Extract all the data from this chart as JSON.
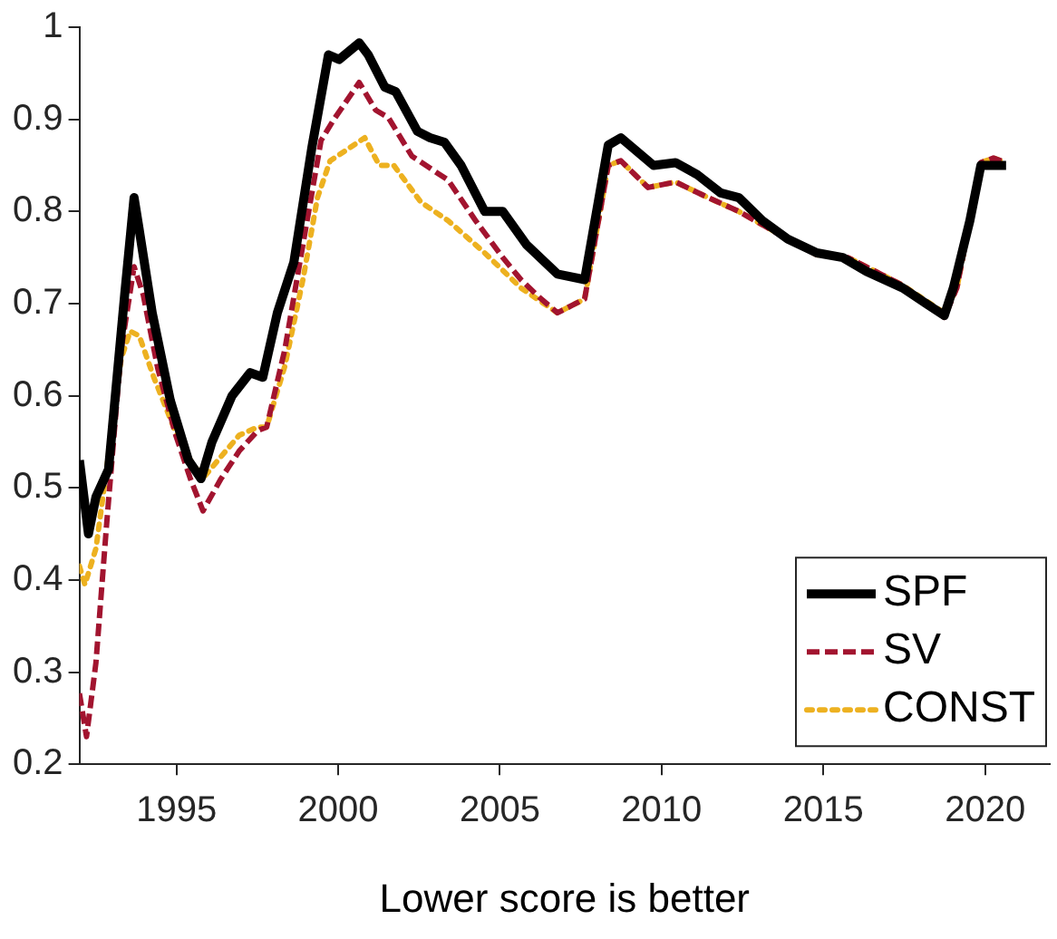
{
  "chart_data": {
    "type": "line",
    "xlabel": "Lower score is better",
    "xlim": [
      1992,
      2022
    ],
    "xticks": [
      1995,
      2000,
      2005,
      2010,
      2015,
      2020
    ],
    "ylim": [
      0.2,
      1
    ],
    "yticks": [
      0.2,
      0.3,
      0.4,
      0.5,
      0.6,
      0.7,
      0.8,
      0.9,
      1
    ],
    "grid": false,
    "legend": "bottom right",
    "marker": "none",
    "series": [
      {
        "name": "SPF",
        "color": "#000000",
        "line_style": "solid",
        "x": [
          1992.0,
          1992.28,
          1992.51,
          1992.9,
          1993.4,
          1993.69,
          1993.85,
          1994.25,
          1994.81,
          1995.37,
          1995.76,
          1996.1,
          1996.72,
          1997.28,
          1997.67,
          1998.12,
          1998.63,
          1999.19,
          1999.7,
          2000.03,
          2000.65,
          2000.93,
          2001.44,
          2001.78,
          2002.45,
          2002.84,
          2003.29,
          2003.8,
          2004.53,
          2005.09,
          2005.82,
          2006.78,
          2007.62,
          2008.35,
          2008.74,
          2009.75,
          2010.43,
          2011.1,
          2011.83,
          2012.39,
          2013.12,
          2013.9,
          2014.8,
          2015.6,
          2016.33,
          2017.45,
          2018.74,
          2019.02,
          2019.53,
          2019.87,
          2020.09,
          2020.65
        ],
        "values": [
          0.53,
          0.45,
          0.49,
          0.52,
          0.71,
          0.815,
          0.78,
          0.69,
          0.595,
          0.53,
          0.51,
          0.55,
          0.6,
          0.625,
          0.62,
          0.69,
          0.745,
          0.87,
          0.97,
          0.965,
          0.983,
          0.97,
          0.935,
          0.93,
          0.887,
          0.88,
          0.875,
          0.85,
          0.8,
          0.8,
          0.764,
          0.732,
          0.726,
          0.872,
          0.88,
          0.85,
          0.853,
          0.84,
          0.82,
          0.815,
          0.79,
          0.77,
          0.755,
          0.75,
          0.735,
          0.717,
          0.687,
          0.717,
          0.79,
          0.85,
          0.85,
          0.85
        ]
      },
      {
        "name": "SV",
        "color": "#a2142f",
        "line_style": "dashed",
        "x": [
          1992.0,
          1992.22,
          1992.51,
          1992.84,
          1993.29,
          1993.69,
          1993.97,
          1994.42,
          1994.98,
          1995.43,
          1995.82,
          1996.38,
          1996.94,
          1997.51,
          1997.79,
          1998.35,
          1998.91,
          1999.47,
          1999.87,
          2000.65,
          2001.16,
          2001.55,
          2002.28,
          2003.4,
          2004.25,
          2005.09,
          2005.65,
          2006.21,
          2006.78,
          2007.34,
          2007.62,
          2008.35,
          2008.74,
          2009.58,
          2010.43,
          2011.44,
          2012.39,
          2013.9,
          2014.8,
          2015.76,
          2017.45,
          2018.74,
          2019.13,
          2019.87,
          2020.26,
          2020.65
        ],
        "values": [
          0.277,
          0.23,
          0.31,
          0.46,
          0.65,
          0.74,
          0.71,
          0.63,
          0.557,
          0.51,
          0.475,
          0.51,
          0.54,
          0.562,
          0.566,
          0.65,
          0.764,
          0.877,
          0.9,
          0.94,
          0.91,
          0.902,
          0.86,
          0.834,
          0.79,
          0.75,
          0.726,
          0.707,
          0.69,
          0.7,
          0.705,
          0.85,
          0.855,
          0.826,
          0.832,
          0.815,
          0.8,
          0.77,
          0.753,
          0.75,
          0.72,
          0.685,
          0.717,
          0.853,
          0.858,
          0.853
        ]
      },
      {
        "name": "CONST",
        "color": "#edb120",
        "line_style": "dotted",
        "x": [
          1992.0,
          1992.17,
          1992.51,
          1992.84,
          1993.29,
          1993.57,
          1993.85,
          1994.3,
          1994.98,
          1995.54,
          1995.88,
          1996.38,
          1996.94,
          1997.51,
          1997.79,
          1998.35,
          1998.91,
          1999.36,
          1999.75,
          2000.31,
          2000.82,
          2001.27,
          2001.72,
          2002.56,
          2003.4,
          2004.53,
          2005.65,
          2006.78,
          2007.62,
          2008.35,
          2008.74,
          2009.58,
          2010.43,
          2011.44,
          2012.39,
          2013.9,
          2014.8,
          2015.76,
          2017.45,
          2018.74,
          2019.13,
          2019.87,
          2020.26,
          2020.65
        ],
        "values": [
          0.415,
          0.395,
          0.434,
          0.52,
          0.64,
          0.67,
          0.665,
          0.62,
          0.56,
          0.523,
          0.513,
          0.534,
          0.557,
          0.566,
          0.566,
          0.632,
          0.726,
          0.815,
          0.855,
          0.868,
          0.88,
          0.85,
          0.85,
          0.81,
          0.79,
          0.755,
          0.717,
          0.69,
          0.705,
          0.85,
          0.855,
          0.826,
          0.832,
          0.815,
          0.8,
          0.77,
          0.753,
          0.75,
          0.72,
          0.69,
          0.717,
          0.853,
          0.858,
          0.853
        ]
      }
    ]
  }
}
